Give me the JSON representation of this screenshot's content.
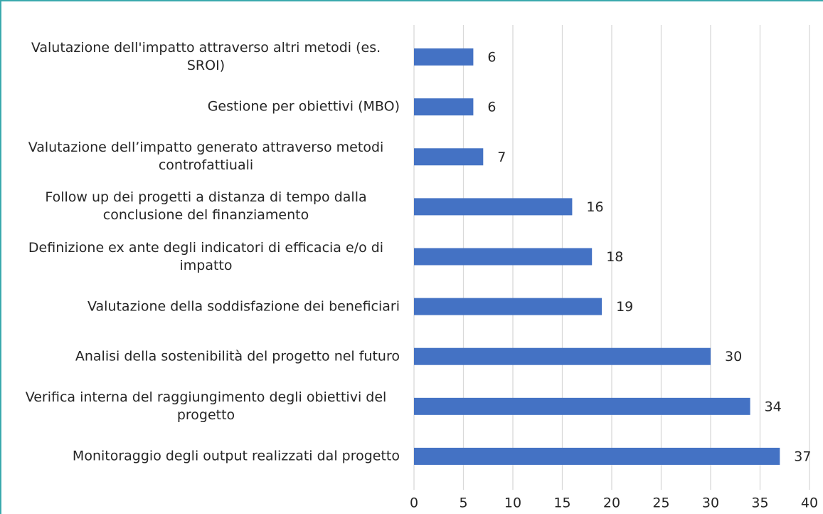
{
  "chart_data": {
    "type": "hbar",
    "categories": [
      "Valutazione dell'impatto attraverso altri metodi (es. SROI)",
      "Gestione per obiettivi (MBO)",
      "Valutazione dell’impatto generato attraverso metodi controfattiuali",
      "Follow up dei progetti a distanza di tempo dalla conclusione del finanziamento",
      "Definizione ex ante degli indicatori di efficacia e/o di impatto",
      "Valutazione della soddisfazione dei beneficiari",
      "Analisi della sostenibilità del progetto nel futuro",
      "Verifica interna del raggiungimento degli obiettivi del progetto",
      "Monitoraggio degli output realizzati dal progetto"
    ],
    "values": [
      6,
      6,
      7,
      16,
      18,
      19,
      30,
      34,
      37
    ],
    "color": "#4472c4",
    "xlim": [
      0,
      40
    ],
    "xticks": [
      0,
      5,
      10,
      15,
      20,
      25,
      30,
      35,
      40
    ],
    "grid": true
  }
}
